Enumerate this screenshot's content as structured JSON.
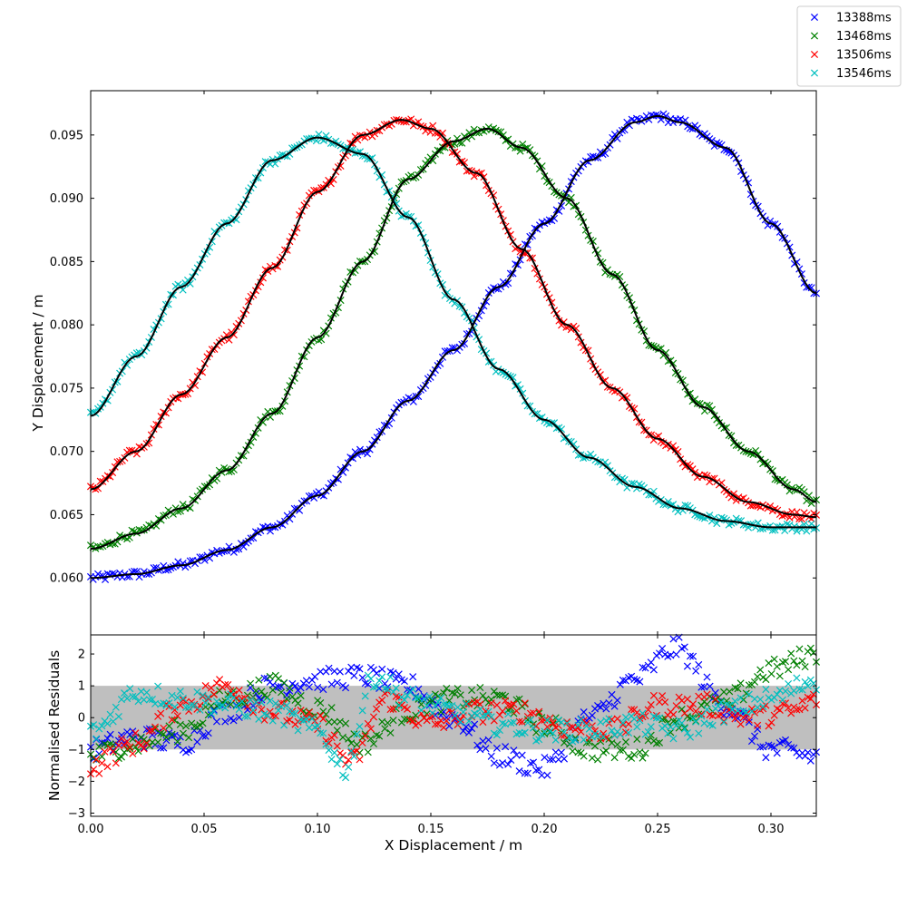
{
  "chart_data": [
    {
      "type": "scatter",
      "title": "",
      "xlabel": "",
      "ylabel": "Y Displacement / m",
      "xlim": [
        0.0,
        0.32
      ],
      "ylim": [
        0.0555,
        0.0985
      ],
      "x_ticks": [
        "0.00",
        "0.05",
        "0.10",
        "0.15",
        "0.20",
        "0.25",
        "0.30"
      ],
      "y_ticks": [
        "0.060",
        "0.065",
        "0.070",
        "0.075",
        "0.080",
        "0.085",
        "0.090",
        "0.095"
      ],
      "y_tick_values": [
        0.06,
        0.065,
        0.07,
        0.075,
        0.08,
        0.085,
        0.09,
        0.095
      ],
      "legend_position": "top-right",
      "fit_line_color": "#000000",
      "series": [
        {
          "name": "13388ms",
          "color": "#0000ff",
          "marker": "x",
          "x": [
            0.0,
            0.02,
            0.04,
            0.06,
            0.08,
            0.1,
            0.12,
            0.14,
            0.16,
            0.18,
            0.2,
            0.22,
            0.24,
            0.25,
            0.26,
            0.28,
            0.3,
            0.32
          ],
          "y": [
            0.06,
            0.0603,
            0.061,
            0.0622,
            0.064,
            0.0665,
            0.07,
            0.074,
            0.078,
            0.083,
            0.088,
            0.093,
            0.096,
            0.0965,
            0.096,
            0.094,
            0.088,
            0.0825
          ]
        },
        {
          "name": "13468ms",
          "color": "#008000",
          "marker": "x",
          "x": [
            0.0,
            0.02,
            0.04,
            0.06,
            0.08,
            0.1,
            0.12,
            0.14,
            0.16,
            0.175,
            0.19,
            0.21,
            0.23,
            0.25,
            0.27,
            0.29,
            0.31,
            0.32
          ],
          "y": [
            0.0623,
            0.0635,
            0.0655,
            0.0685,
            0.073,
            0.079,
            0.085,
            0.0915,
            0.0945,
            0.0955,
            0.094,
            0.09,
            0.084,
            0.078,
            0.0735,
            0.07,
            0.067,
            0.066
          ]
        },
        {
          "name": "13506ms",
          "color": "#ff0000",
          "marker": "x",
          "x": [
            0.0,
            0.02,
            0.04,
            0.06,
            0.08,
            0.1,
            0.12,
            0.137,
            0.15,
            0.17,
            0.19,
            0.21,
            0.23,
            0.25,
            0.27,
            0.29,
            0.31,
            0.32
          ],
          "y": [
            0.067,
            0.07,
            0.0745,
            0.079,
            0.0845,
            0.0905,
            0.095,
            0.0962,
            0.0955,
            0.092,
            0.086,
            0.08,
            0.075,
            0.071,
            0.068,
            0.066,
            0.065,
            0.0648
          ]
        },
        {
          "name": "13546ms",
          "color": "#00bfbf",
          "marker": "x",
          "x": [
            0.0,
            0.02,
            0.04,
            0.06,
            0.08,
            0.1,
            0.12,
            0.14,
            0.16,
            0.18,
            0.2,
            0.22,
            0.24,
            0.26,
            0.28,
            0.3,
            0.32
          ],
          "y": [
            0.0728,
            0.0775,
            0.083,
            0.088,
            0.093,
            0.0948,
            0.0935,
            0.0885,
            0.082,
            0.0765,
            0.0725,
            0.0695,
            0.0672,
            0.0655,
            0.0645,
            0.064,
            0.064
          ]
        }
      ]
    },
    {
      "type": "scatter",
      "title": "",
      "xlabel": "X Displacement / m",
      "ylabel": "Normalised Residuals",
      "xlim": [
        0.0,
        0.32
      ],
      "ylim": [
        -3.1,
        2.6
      ],
      "x_ticks": [
        "0.00",
        "0.05",
        "0.10",
        "0.15",
        "0.20",
        "0.25",
        "0.30"
      ],
      "y_ticks": [
        "−3",
        "−2",
        "−1",
        "0",
        "1",
        "2"
      ],
      "y_tick_values": [
        -3,
        -2,
        -1,
        0,
        1,
        2
      ],
      "band": {
        "lower": -1,
        "upper": 1,
        "color": "#bfbfbf"
      },
      "series": [
        {
          "name": "13388ms",
          "color": "#0000ff",
          "x": [
            0.0,
            0.02,
            0.04,
            0.06,
            0.08,
            0.1,
            0.12,
            0.14,
            0.16,
            0.18,
            0.2,
            0.22,
            0.24,
            0.258,
            0.28,
            0.3,
            0.32
          ],
          "y": [
            -1.0,
            -0.6,
            -0.8,
            0.2,
            1.0,
            1.2,
            1.3,
            1.0,
            0.0,
            -1.2,
            -1.6,
            0.0,
            1.2,
            2.2,
            0.4,
            -1.0,
            -1.2
          ]
        },
        {
          "name": "13468ms",
          "color": "#008000",
          "x": [
            0.0,
            0.02,
            0.04,
            0.06,
            0.08,
            0.1,
            0.12,
            0.14,
            0.16,
            0.18,
            0.2,
            0.22,
            0.24,
            0.26,
            0.28,
            0.3,
            0.32
          ],
          "y": [
            -1.2,
            -0.8,
            -0.4,
            0.6,
            1.0,
            0.3,
            -0.8,
            0.2,
            0.6,
            0.6,
            -0.2,
            -1.0,
            -1.0,
            0.0,
            0.5,
            1.5,
            2.0
          ]
        },
        {
          "name": "13506ms",
          "color": "#ff0000",
          "x": [
            0.0,
            0.02,
            0.04,
            0.06,
            0.08,
            0.1,
            0.115,
            0.13,
            0.15,
            0.17,
            0.19,
            0.21,
            0.23,
            0.25,
            0.27,
            0.29,
            0.31,
            0.32
          ],
          "y": [
            -1.5,
            -0.8,
            0.4,
            1.0,
            0.2,
            -0.2,
            -1.4,
            0.6,
            -0.2,
            0.2,
            0.2,
            -0.3,
            -0.4,
            0.4,
            0.4,
            0.0,
            0.2,
            0.6
          ]
        },
        {
          "name": "13546ms",
          "color": "#00bfbf",
          "x": [
            0.0,
            0.02,
            0.04,
            0.06,
            0.08,
            0.1,
            0.112,
            0.125,
            0.14,
            0.16,
            0.18,
            0.2,
            0.22,
            0.24,
            0.26,
            0.28,
            0.3,
            0.32
          ],
          "y": [
            -0.5,
            0.8,
            0.6,
            0.4,
            0.2,
            -0.4,
            -1.6,
            1.3,
            0.6,
            0.2,
            -0.2,
            -0.4,
            -0.4,
            -0.2,
            -0.4,
            0.2,
            0.6,
            1.2
          ]
        }
      ]
    }
  ]
}
